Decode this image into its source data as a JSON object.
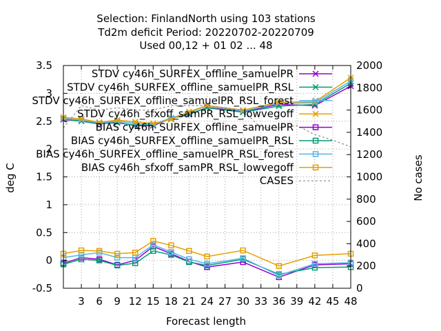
{
  "chart_data": {
    "type": "line",
    "title_lines": [
      "Selection: FinlandNorth using   103 stations",
      "Td2m deficit   Period: 20220702-20220709",
      "Used  00,12  + 01 02 ... 48"
    ],
    "xlabel": "Forecast length",
    "ylabel": "deg C",
    "y2label": "No cases",
    "xlim": [
      0,
      48
    ],
    "ylim": [
      -0.5,
      3.5
    ],
    "y2lim": [
      0,
      2000
    ],
    "xticks": [
      3,
      6,
      9,
      12,
      15,
      18,
      21,
      24,
      27,
      30,
      33,
      36,
      39,
      42,
      45,
      48
    ],
    "yticks": [
      -0.5,
      0,
      0.5,
      1,
      1.5,
      2,
      2.5,
      3,
      3.5
    ],
    "y2ticks": [
      0,
      200,
      400,
      600,
      800,
      1000,
      1200,
      1400,
      1600,
      1800,
      2000
    ],
    "grid": true,
    "legend_position": "top-right",
    "x": [
      0,
      3,
      6,
      9,
      12,
      15,
      18,
      21,
      24,
      27,
      30,
      33,
      36,
      39,
      42,
      45,
      48
    ],
    "series": [
      {
        "name": "STDV cy46h_SURFEX_offline_samuelPR",
        "axis": "y",
        "marker": "x",
        "color": "#9400d3",
        "x": [
          0,
          3,
          6,
          9,
          12,
          15,
          18,
          21,
          24,
          30,
          36,
          42,
          48
        ],
        "values": [
          2.53,
          2.5,
          2.45,
          2.48,
          2.42,
          2.42,
          2.55,
          2.62,
          2.75,
          2.67,
          2.8,
          2.78,
          3.13
        ]
      },
      {
        "name": "STDV cy46h_SURFEX_offline_samuelPR_RSL",
        "axis": "y",
        "marker": "x",
        "color": "#009e73",
        "x": [
          0,
          3,
          6,
          9,
          12,
          15,
          18,
          21,
          24,
          30,
          36,
          42,
          48
        ],
        "values": [
          2.54,
          2.5,
          2.46,
          2.47,
          2.43,
          2.43,
          2.55,
          2.63,
          2.74,
          2.66,
          2.77,
          2.8,
          3.18
        ]
      },
      {
        "name": "STDV cy46h_SURFEX_offline_samuelPR_RSL_forest",
        "axis": "y",
        "marker": "x",
        "color": "#56b4e9",
        "x": [
          0,
          3,
          6,
          9,
          12,
          15,
          18,
          21,
          24,
          30,
          36,
          42,
          48
        ],
        "values": [
          2.55,
          2.52,
          2.47,
          2.5,
          2.46,
          2.44,
          2.56,
          2.65,
          2.78,
          2.68,
          2.82,
          2.83,
          3.22
        ]
      },
      {
        "name": "STDV cy46h_sfxoff_samPR_RSL_lowvegoff",
        "axis": "y",
        "marker": "x",
        "color": "#e69f00",
        "x": [
          0,
          3,
          6,
          9,
          12,
          15,
          18,
          21,
          24,
          30,
          36,
          42,
          48
        ],
        "values": [
          2.57,
          2.54,
          2.48,
          2.52,
          2.49,
          2.46,
          2.53,
          2.67,
          2.78,
          2.7,
          2.84,
          2.85,
          3.28
        ]
      },
      {
        "name": "BIAS cy46h_SURFEX_offline_samuelPR",
        "axis": "y",
        "marker": "square",
        "color": "#9400d3",
        "x": [
          0,
          3,
          6,
          9,
          12,
          15,
          18,
          21,
          24,
          30,
          36,
          42,
          48
        ],
        "values": [
          -0.05,
          0.05,
          0.02,
          -0.08,
          0.0,
          0.25,
          0.12,
          -0.02,
          -0.12,
          -0.03,
          -0.3,
          -0.08,
          -0.06
        ]
      },
      {
        "name": "BIAS cy46h_SURFEX_offline_samuelPR_RSL",
        "axis": "y",
        "marker": "square",
        "color": "#009e73",
        "x": [
          0,
          3,
          6,
          9,
          12,
          15,
          18,
          21,
          24,
          30,
          36,
          42,
          48
        ],
        "values": [
          -0.07,
          0.02,
          0.0,
          -0.09,
          -0.05,
          0.17,
          0.1,
          -0.03,
          -0.09,
          0.02,
          -0.25,
          -0.13,
          -0.12
        ]
      },
      {
        "name": "BIAS cy46h_SURFEX_offline_samuelPR_RSL_forest",
        "axis": "y",
        "marker": "square",
        "color": "#56b4e9",
        "x": [
          0,
          3,
          6,
          9,
          12,
          15,
          18,
          21,
          24,
          30,
          36,
          42,
          48
        ],
        "values": [
          0.05,
          0.1,
          0.14,
          0.05,
          0.05,
          0.28,
          0.15,
          0.02,
          -0.06,
          0.04,
          -0.27,
          -0.06,
          -0.04
        ]
      },
      {
        "name": "BIAS cy46h_sfxoff_samPR_RSL_lowvegoff",
        "axis": "y",
        "marker": "square",
        "color": "#e69f00",
        "x": [
          0,
          3,
          6,
          9,
          12,
          15,
          18,
          21,
          24,
          30,
          36,
          42,
          48
        ],
        "values": [
          0.12,
          0.18,
          0.17,
          0.12,
          0.14,
          0.35,
          0.27,
          0.17,
          0.07,
          0.18,
          -0.1,
          0.09,
          0.12
        ]
      },
      {
        "name": "CASES",
        "axis": "y2",
        "marker": "none",
        "color": "#888888",
        "dashed": true,
        "x": [
          0,
          3,
          6,
          9,
          12,
          15,
          18,
          21,
          24,
          27,
          30,
          33,
          36,
          39,
          42,
          45,
          48
        ],
        "values": [
          1440,
          1640,
          1600,
          1620,
          1600,
          1600,
          1640,
          1640,
          1640,
          1620,
          1600,
          1440,
          1440,
          1460,
          1380,
          1330,
          1270
        ]
      }
    ]
  }
}
